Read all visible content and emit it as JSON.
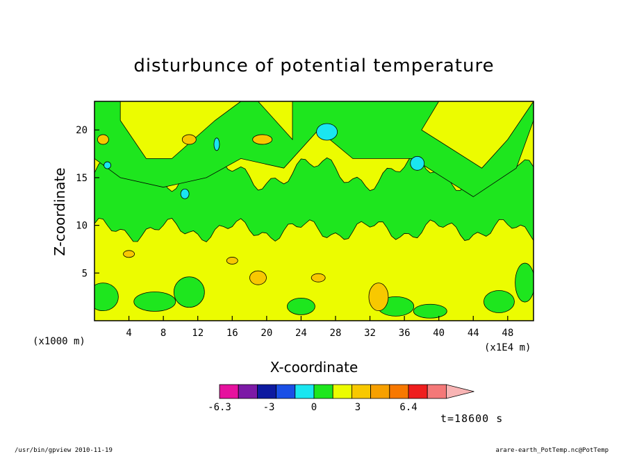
{
  "chart_data": {
    "type": "heatmap",
    "title": "disturbunce of potential temperature",
    "xlabel": "X-coordinate",
    "ylabel": "Z-coordinate",
    "x_unit_left": "(x1000 m)",
    "x_unit_right": "(x1E4 m)",
    "x_ticks": [
      "4",
      "8",
      "12",
      "16",
      "20",
      "24",
      "28",
      "32",
      "36",
      "40",
      "44",
      "48"
    ],
    "y_ticks": [
      "5",
      "10",
      "15",
      "20"
    ],
    "xlim": [
      0,
      51
    ],
    "ylim": [
      0,
      23
    ],
    "colorbar": {
      "labels": [
        "-6.3",
        "-3",
        "0",
        "3",
        "6.4"
      ],
      "colors": [
        "#e6119e",
        "#7c1aa6",
        "#0d1aa0",
        "#1a4fe6",
        "#1ae6f0",
        "#1ee61e",
        "#ecfc00",
        "#f8c800",
        "#f7a000",
        "#f77800",
        "#ef1e1e",
        "#f47878",
        "#f8b4b4"
      ]
    },
    "time_label": "t=18600 s"
  },
  "footer": {
    "left": "/usr/bin/gpview  2010-11-19",
    "right": "arare-earth_PotTemp.nc@PotTemp"
  }
}
